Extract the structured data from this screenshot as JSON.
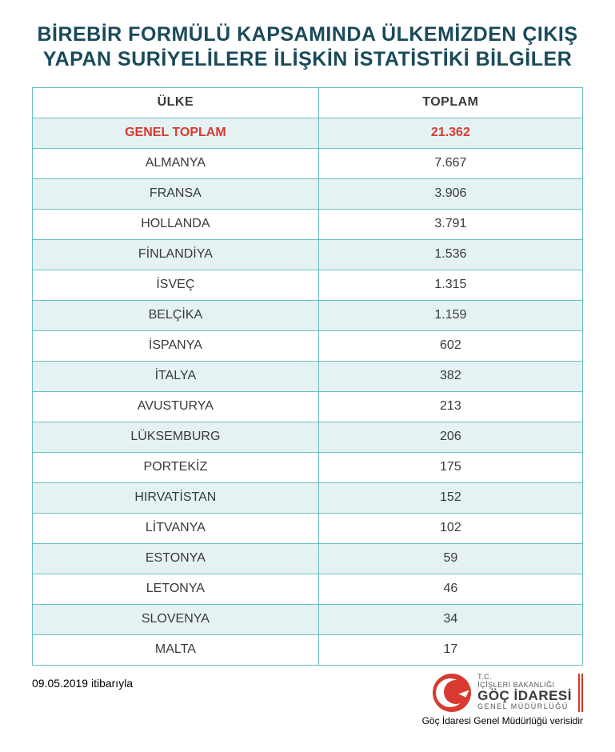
{
  "title": "BİREBİR FORMÜLÜ KAPSAMINDA ÜLKEMİZDEN ÇIKIŞ YAPAN SURİYELİLERE İLİŞKİN İSTATİSTİKİ BİLGİLER",
  "title_color": "#1a4a5a",
  "title_fontsize": 25,
  "table": {
    "border_color": "#6bbfc1",
    "header_bg": "#ffffff",
    "row_even_bg": "#e5f2f3",
    "row_odd_bg": "#ffffff",
    "text_color": "#3a3a3a",
    "header_fontsize": 16,
    "cell_fontsize": 16,
    "columns": [
      "ÜLKE",
      "TOPLAM"
    ],
    "total_row": {
      "label": "GENEL TOPLAM",
      "value": "21.362",
      "color": "#d83a2f"
    },
    "rows": [
      {
        "country": "ALMANYA",
        "value": "7.667"
      },
      {
        "country": "FRANSA",
        "value": "3.906"
      },
      {
        "country": "HOLLANDA",
        "value": "3.791"
      },
      {
        "country": "FİNLANDİYA",
        "value": "1.536"
      },
      {
        "country": "İSVEÇ",
        "value": "1.315"
      },
      {
        "country": "BELÇİKA",
        "value": "1.159"
      },
      {
        "country": "İSPANYA",
        "value": "602"
      },
      {
        "country": "İTALYA",
        "value": "382"
      },
      {
        "country": "AVUSTURYA",
        "value": "213"
      },
      {
        "country": "LÜKSEMBURG",
        "value": "206"
      },
      {
        "country": "PORTEKİZ",
        "value": "175"
      },
      {
        "country": "HIRVATİSTAN",
        "value": "152"
      },
      {
        "country": "LİTVANYA",
        "value": "102"
      },
      {
        "country": "ESTONYA",
        "value": "59"
      },
      {
        "country": "LETONYA",
        "value": "46"
      },
      {
        "country": "SLOVENYA",
        "value": "34"
      },
      {
        "country": "MALTA",
        "value": "17"
      }
    ]
  },
  "footer": {
    "date": "09.05.2019 itibarıyla",
    "logo_bg": "#d83a2f",
    "logo_lines": {
      "l1": "T.C.",
      "l2": "İÇİŞLERİ BAKANLIĞI",
      "l3": "GÖÇ İDARESİ",
      "l4": "GENEL MÜDÜRLÜĞÜ"
    },
    "logo_title_color": "#3a3a3a",
    "source": "Göç İdaresi Genel Müdürlüğü verisidir"
  }
}
